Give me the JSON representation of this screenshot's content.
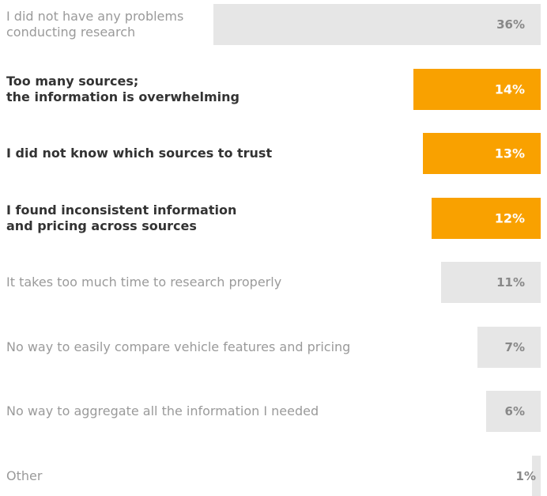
{
  "chart_data": {
    "type": "bar",
    "orientation": "horizontal",
    "categories": [
      "I did not have any problems\nconducting research",
      "Too many sources;\nthe information is overwhelming",
      "I did not know which sources to trust",
      "I found inconsistent information\nand pricing across sources",
      "It takes too much time to research properly",
      "No way to easily compare vehicle features and pricing",
      "No way to aggregate all the information I needed",
      "Other"
    ],
    "values": [
      36,
      14,
      13,
      12,
      11,
      7,
      6,
      1
    ],
    "value_labels": [
      "36%",
      "14%",
      "13%",
      "12%",
      "11%",
      "7%",
      "6%",
      "1%"
    ],
    "color": "#e6e6e6",
    "highlight_color": "#f9a100",
    "highlighted": [
      false,
      true,
      true,
      true,
      false,
      false,
      false,
      false
    ],
    "xlim": [
      0,
      36
    ]
  }
}
